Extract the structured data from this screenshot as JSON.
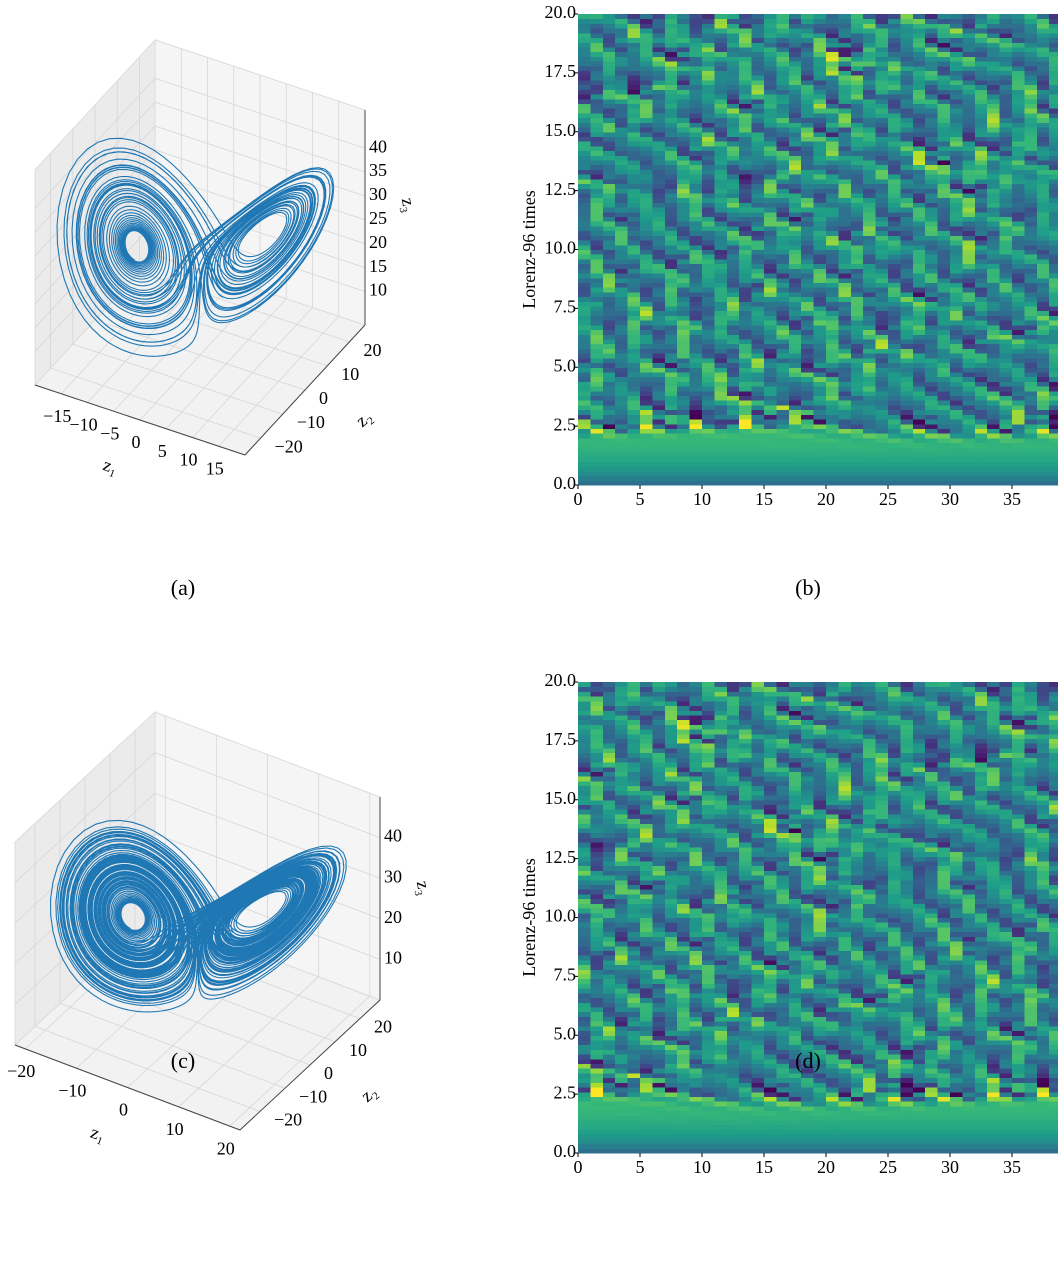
{
  "chart_data": [
    {
      "type": "line3d",
      "caption": "(a)",
      "xlabel": "z₁",
      "ylabel": "z₂",
      "zlabel": "z₃",
      "color": "#1f77b4",
      "xlim": [
        -20,
        20
      ],
      "ylim": [
        -27,
        27
      ],
      "zlim": [
        3,
        48
      ],
      "xticks": [
        {
          "value": -15,
          "label": "−15"
        },
        {
          "value": -10,
          "label": "−10"
        },
        {
          "value": -5,
          "label": "−5"
        },
        0,
        5,
        10,
        15
      ],
      "yticks": [
        {
          "value": -20,
          "label": "−20"
        },
        {
          "value": -10,
          "label": "−10"
        },
        0,
        10,
        20
      ],
      "zticks": [
        10,
        15,
        20,
        25,
        30,
        35,
        40
      ]
    },
    {
      "type": "heatmap",
      "caption": "(b)",
      "ylabel": "Lorenz-96 times",
      "colormap": "viridis",
      "xlim": [
        0,
        40
      ],
      "ylim": [
        0,
        20
      ],
      "xticks": [
        0,
        5,
        10,
        15,
        20,
        25,
        30,
        35
      ],
      "yticks": [
        {
          "value": 0,
          "label": "0.0"
        },
        {
          "value": 2.5,
          "label": "2.5"
        },
        {
          "value": 5,
          "label": "5.0"
        },
        {
          "value": 7.5,
          "label": "7.5"
        },
        {
          "value": 10,
          "label": "10.0"
        },
        {
          "value": 12.5,
          "label": "12.5"
        },
        {
          "value": 15,
          "label": "15.0"
        },
        {
          "value": 17.5,
          "label": "17.5"
        },
        {
          "value": 20,
          "label": "20.0"
        }
      ]
    },
    {
      "type": "line3d",
      "caption": "(c)",
      "xlabel": "z₁",
      "ylabel": "z₂",
      "zlabel": "z₃",
      "color": "#1f77b4",
      "xlim": [
        -22,
        22
      ],
      "ylim": [
        -28,
        28
      ],
      "zlim": [
        0,
        50
      ],
      "xticks": [
        {
          "value": -20,
          "label": "−20"
        },
        {
          "value": -10,
          "label": "−10"
        },
        0,
        10,
        20
      ],
      "yticks": [
        {
          "value": -20,
          "label": "−20"
        },
        {
          "value": -10,
          "label": "−10"
        },
        0,
        10,
        20
      ],
      "zticks": [
        10,
        20,
        30,
        40
      ]
    },
    {
      "type": "heatmap",
      "caption": "(d)",
      "ylabel": "Lorenz-96 times",
      "colormap": "viridis",
      "xlim": [
        0,
        40
      ],
      "ylim": [
        0,
        20
      ],
      "xticks": [
        0,
        5,
        10,
        15,
        20,
        25,
        30,
        35
      ],
      "yticks": [
        {
          "value": 0,
          "label": "0.0"
        },
        {
          "value": 2.5,
          "label": "2.5"
        },
        {
          "value": 5,
          "label": "5.0"
        },
        {
          "value": 7.5,
          "label": "7.5"
        },
        {
          "value": 10,
          "label": "10.0"
        },
        {
          "value": 12.5,
          "label": "12.5"
        },
        {
          "value": 15,
          "label": "15.0"
        },
        {
          "value": 17.5,
          "label": "17.5"
        },
        {
          "value": 20,
          "label": "20.0"
        }
      ]
    }
  ]
}
